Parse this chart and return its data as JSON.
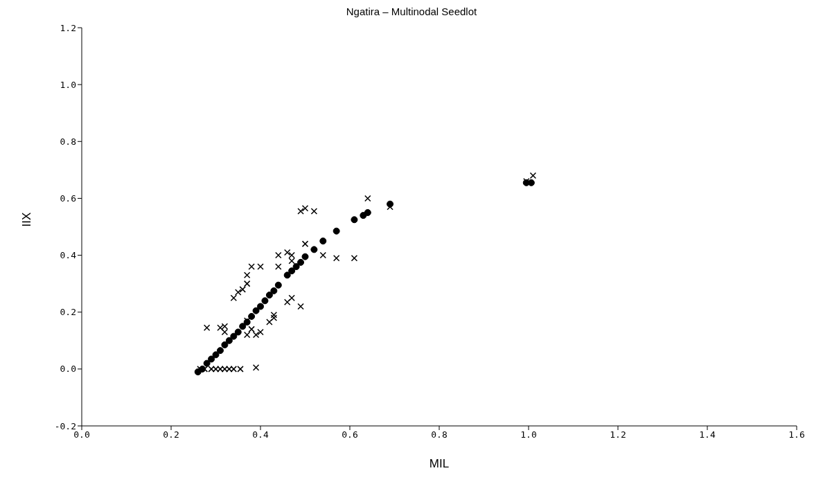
{
  "chart_data": {
    "type": "scatter",
    "title": "Ngatira – Multinodal Seedlot",
    "xlabel": "MIL",
    "ylabel": "IIX",
    "xlim": [
      0,
      1.6
    ],
    "ylim": [
      -0.2,
      1.2
    ],
    "xticks": [
      {
        "value": 0,
        "label": "0.0"
      },
      {
        "value": 0.2,
        "label": "0.2"
      },
      {
        "value": 0.4,
        "label": "0.4"
      },
      {
        "value": 0.6,
        "label": "0.6"
      },
      {
        "value": 0.8,
        "label": "0.8"
      },
      {
        "value": 1.0,
        "label": "1.0"
      },
      {
        "value": 1.2,
        "label": "1.2"
      },
      {
        "value": 1.4,
        "label": "1.4"
      },
      {
        "value": 1.6,
        "label": "1.6"
      }
    ],
    "yticks": [
      {
        "value": -0.2,
        "label": "-0.2"
      },
      {
        "value": 0,
        "label": "0.0"
      },
      {
        "value": 0.2,
        "label": "0.2"
      },
      {
        "value": 0.4,
        "label": "0.4"
      },
      {
        "value": 0.6,
        "label": "0.6"
      },
      {
        "value": 0.8,
        "label": "0.8"
      },
      {
        "value": 1.0,
        "label": "1.0"
      },
      {
        "value": 1.2,
        "label": "1.2"
      }
    ],
    "grid": false,
    "legend": false,
    "series": [
      {
        "color": "#000000",
        "marker": "circle",
        "x": [
          0.26,
          0.27,
          0.28,
          0.29,
          0.3,
          0.31,
          0.32,
          0.33,
          0.34,
          0.35,
          0.36,
          0.37,
          0.38,
          0.39,
          0.4,
          0.41,
          0.42,
          0.43,
          0.44,
          0.46,
          0.47,
          0.48,
          0.49,
          0.5,
          0.52,
          0.54,
          0.57,
          0.61,
          0.63,
          0.64,
          0.69,
          0.995,
          1.006
        ],
        "values": [
          -0.01,
          0.0,
          0.02,
          0.035,
          0.05,
          0.065,
          0.085,
          0.1,
          0.115,
          0.13,
          0.15,
          0.165,
          0.185,
          0.205,
          0.22,
          0.24,
          0.26,
          0.275,
          0.295,
          0.33,
          0.345,
          0.36,
          0.375,
          0.395,
          0.42,
          0.45,
          0.485,
          0.525,
          0.54,
          0.55,
          0.58,
          0.655,
          0.655
        ]
      },
      {
        "color": "#000000",
        "marker": "cross",
        "x": [
          0.265,
          0.275,
          0.29,
          0.3,
          0.31,
          0.32,
          0.33,
          0.34,
          0.355,
          0.39,
          0.28,
          0.31,
          0.32,
          0.32,
          0.37,
          0.37,
          0.38,
          0.39,
          0.4,
          0.42,
          0.43,
          0.43,
          0.46,
          0.47,
          0.49,
          0.34,
          0.35,
          0.36,
          0.37,
          0.37,
          0.38,
          0.4,
          0.44,
          0.44,
          0.46,
          0.47,
          0.47,
          0.5,
          0.54,
          0.57,
          0.61,
          0.49,
          0.5,
          0.52,
          0.64,
          0.69,
          0.995,
          1.01
        ],
        "values": [
          0,
          0,
          0,
          0,
          0,
          0,
          0,
          0,
          0,
          0.005,
          0.145,
          0.145,
          0.15,
          0.13,
          0.17,
          0.12,
          0.14,
          0.12,
          0.13,
          0.165,
          0.18,
          0.19,
          0.235,
          0.25,
          0.22,
          0.25,
          0.27,
          0.28,
          0.3,
          0.33,
          0.36,
          0.36,
          0.36,
          0.4,
          0.41,
          0.4,
          0.38,
          0.44,
          0.4,
          0.39,
          0.39,
          0.555,
          0.565,
          0.555,
          0.6,
          0.57,
          0.66,
          0.68
        ]
      }
    ]
  }
}
